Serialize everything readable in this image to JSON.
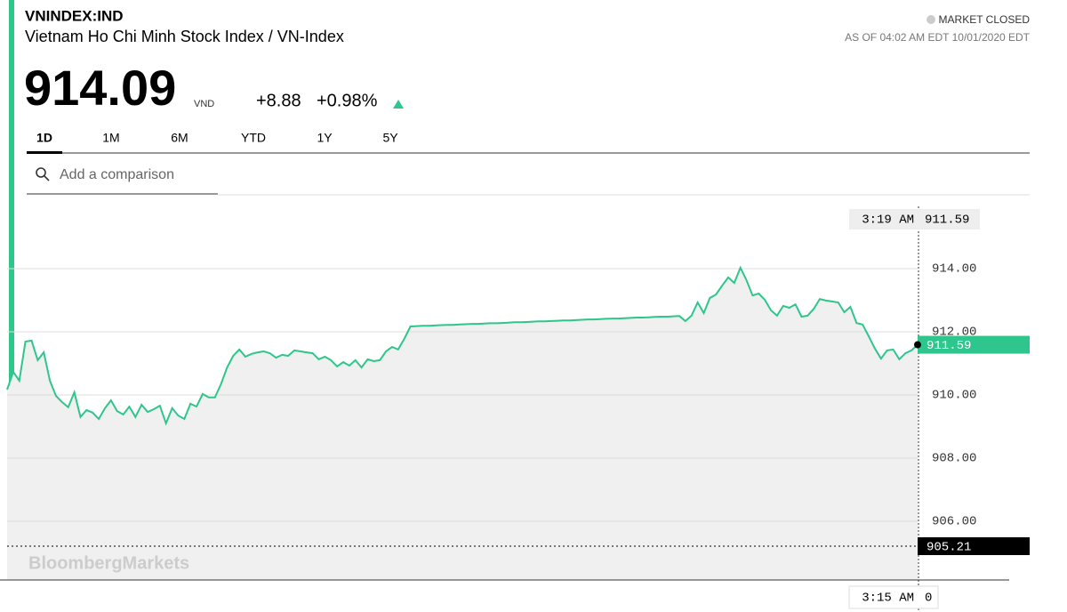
{
  "header": {
    "ticker": "VNINDEX:IND",
    "name": "Vietnam Ho Chi Minh Stock Index / VN-Index",
    "price": "914.09",
    "currency": "VND",
    "change": "+8.88",
    "change_pct": "+0.98%",
    "status": "MARKET CLOSED",
    "as_of": "AS OF 04:02 AM EDT 10/01/2020 EDT"
  },
  "tabs": [
    "1D",
    "1M",
    "6M",
    "YTD",
    "1Y",
    "5Y"
  ],
  "search_placeholder": "Add a comparison",
  "brand": "BloombergMarkets",
  "chart_data": {
    "type": "line",
    "color": "#2ec68c",
    "area_color": "#f0f0f0",
    "grid": true,
    "ylim": [
      904.14,
      916.31
    ],
    "yticks": [
      {
        "value": 906,
        "label": "906.00"
      },
      {
        "value": 908,
        "label": "908.00"
      },
      {
        "value": 910,
        "label": "910.00"
      },
      {
        "value": 912,
        "label": "912.00"
      },
      {
        "value": 914,
        "label": "914.00"
      }
    ],
    "values": [
      910.17,
      910.73,
      910.45,
      911.69,
      911.72,
      911.1,
      911.35,
      910.45,
      909.97,
      909.77,
      909.61,
      910.08,
      909.3,
      909.52,
      909.44,
      909.24,
      909.58,
      909.83,
      909.49,
      909.38,
      909.63,
      909.3,
      909.69,
      909.46,
      909.55,
      909.66,
      909.1,
      909.58,
      909.35,
      909.24,
      909.72,
      909.63,
      910.03,
      909.92,
      909.92,
      910.34,
      910.87,
      911.24,
      911.44,
      911.21,
      911.3,
      911.35,
      911.38,
      911.32,
      911.18,
      911.27,
      911.24,
      911.41,
      911.38,
      911.35,
      911.32,
      911.13,
      911.21,
      911.1,
      910.9,
      911.04,
      910.93,
      911.1,
      910.87,
      911.13,
      911.07,
      911.1,
      911.38,
      911.52,
      911.44,
      911.78,
      912.17,
      912.18,
      912.19,
      912.19,
      912.2,
      912.21,
      912.22,
      912.22,
      912.23,
      912.24,
      912.25,
      912.25,
      912.26,
      912.27,
      912.27,
      912.28,
      912.29,
      912.3,
      912.3,
      912.31,
      912.32,
      912.33,
      912.33,
      912.34,
      912.35,
      912.36,
      912.36,
      912.37,
      912.38,
      912.39,
      912.39,
      912.4,
      912.41,
      912.42,
      912.42,
      912.43,
      912.44,
      912.45,
      912.45,
      912.46,
      912.47,
      912.48,
      912.48,
      912.49,
      912.5,
      912.34,
      912.51,
      912.93,
      912.59,
      913.07,
      913.18,
      913.46,
      913.72,
      913.55,
      914.03,
      913.63,
      913.15,
      913.21,
      913.01,
      912.68,
      912.51,
      912.82,
      912.76,
      912.87,
      912.48,
      912.51,
      912.73,
      913.04,
      912.99,
      912.96,
      912.93,
      912.62,
      912.79,
      912.28,
      912.23,
      911.86,
      911.47,
      911.15,
      911.41,
      911.44,
      911.13,
      911.32,
      911.41,
      911.59
    ],
    "last_value": 911.59,
    "previous_close": 905.21,
    "crosshair_time": "3:19 AM",
    "crosshair_value": 911.59,
    "cursor_time": "3:15 AM",
    "cursor_value": "0"
  }
}
